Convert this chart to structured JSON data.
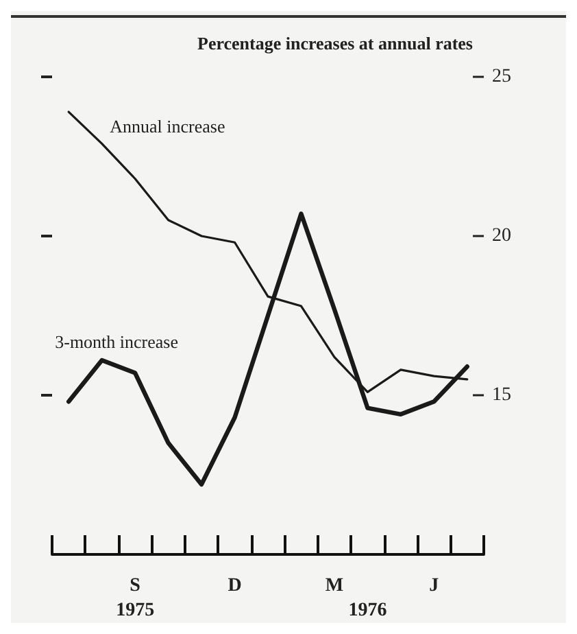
{
  "chart_data": {
    "type": "line",
    "ylabel": "Percentage increases at annual rates",
    "categories": [
      null,
      null,
      "S\n1975",
      null,
      null,
      "D",
      null,
      null,
      "M",
      "\n1976",
      null,
      "J",
      null
    ],
    "series": [
      {
        "name": "Annual increase",
        "color": "#1a1a1a",
        "values": [
          23.9,
          22.9,
          21.8,
          20.5,
          20.0,
          19.8,
          18.1,
          17.8,
          16.2,
          15.1,
          15.8,
          15.6,
          15.5
        ]
      },
      {
        "name": "3-month increase",
        "color": "#1a1a1a",
        "values": [
          14.8,
          16.1,
          15.7,
          13.5,
          12.2,
          14.3,
          17.5,
          20.7,
          17.7,
          14.6,
          14.4,
          14.8,
          15.9
        ]
      }
    ],
    "ylim": [
      10,
      25
    ],
    "yticks": [
      15,
      20,
      25
    ],
    "grid": false,
    "legend": false,
    "marker": "none",
    "line_style": "solid"
  }
}
